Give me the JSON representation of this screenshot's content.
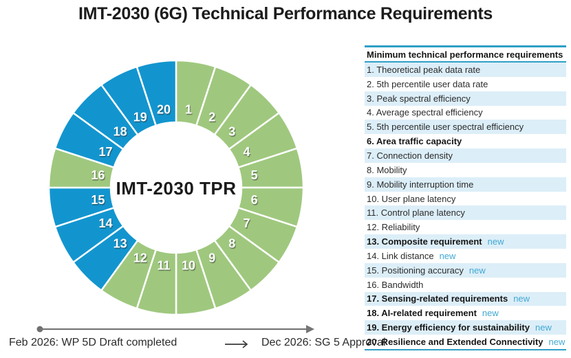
{
  "title": "IMT-2030 (6G) Technical Performance Requirements",
  "colors": {
    "green": "#9fc87e",
    "blue": "#1295cf",
    "stripe_row": "#dceef8",
    "teal_rule": "#2f9fc6",
    "new_text": "#41a9d3",
    "timeline_gray": "#757575",
    "segment_gap": "#ffffff"
  },
  "chart_data": {
    "type": "pie",
    "subtype": "donut",
    "title": "IMT-2030 TPR",
    "center_label": "IMT-2030 TPR",
    "categories": [
      "1",
      "2",
      "3",
      "4",
      "5",
      "6",
      "7",
      "8",
      "9",
      "10",
      "11",
      "12",
      "13",
      "14",
      "15",
      "16",
      "17",
      "18",
      "19",
      "20"
    ],
    "values": [
      1,
      1,
      1,
      1,
      1,
      1,
      1,
      1,
      1,
      1,
      1,
      1,
      1,
      1,
      1,
      1,
      1,
      1,
      1,
      1
    ],
    "colors_by_segment": [
      "green",
      "green",
      "green",
      "green",
      "green",
      "green",
      "green",
      "green",
      "green",
      "green",
      "green",
      "green",
      "blue",
      "blue",
      "blue",
      "green",
      "blue",
      "blue",
      "blue",
      "blue"
    ],
    "start_angle_deg": 0,
    "direction": "clockwise",
    "legend": "none"
  },
  "panel": {
    "header": "Minimum technical performance requirements",
    "new_label": "new",
    "items": [
      {
        "num": "1",
        "label": "Theoretical peak data rate",
        "bold": false,
        "new": false
      },
      {
        "num": "2",
        "label": "5th percentile user data rate",
        "bold": false,
        "new": false
      },
      {
        "num": "3",
        "label": "Peak spectral efficiency",
        "bold": false,
        "new": false
      },
      {
        "num": "4",
        "label": "Average spectral efficiency",
        "bold": false,
        "new": false
      },
      {
        "num": "5",
        "label": "5th percentile user spectral efficiency",
        "bold": false,
        "new": false
      },
      {
        "num": "6",
        "label": "Area traffic capacity",
        "bold": true,
        "new": false
      },
      {
        "num": "7",
        "label": "Connection density",
        "bold": false,
        "new": false
      },
      {
        "num": "8",
        "label": "Mobility",
        "bold": false,
        "new": false
      },
      {
        "num": "9",
        "label": "Mobility interruption time",
        "bold": false,
        "new": false
      },
      {
        "num": "10",
        "label": "User plane latency",
        "bold": false,
        "new": false
      },
      {
        "num": "11",
        "label": "Control plane latency",
        "bold": false,
        "new": false
      },
      {
        "num": "12",
        "label": "Reliability",
        "bold": false,
        "new": false
      },
      {
        "num": "13",
        "label": "Composite requirement",
        "bold": true,
        "new": true
      },
      {
        "num": "14",
        "label": "Link distance",
        "bold": false,
        "new": true
      },
      {
        "num": "15",
        "label": "Positioning accuracy",
        "bold": false,
        "new": true
      },
      {
        "num": "16",
        "label": "Bandwidth",
        "bold": false,
        "new": false
      },
      {
        "num": "17",
        "label": "Sensing-related requirements",
        "bold": true,
        "new": true
      },
      {
        "num": "18",
        "label": "AI-related requirement",
        "bold": true,
        "new": true
      },
      {
        "num": "19",
        "label": "Energy efficiency for sustainability",
        "bold": true,
        "new": true
      },
      {
        "num": "20",
        "label": "Resilience and Extended Connectivity",
        "bold": true,
        "new": true
      }
    ]
  },
  "timeline": {
    "left_label": "Feb 2026: WP 5D Draft completed",
    "right_label": "Dec 2026: SG 5 Approval"
  }
}
